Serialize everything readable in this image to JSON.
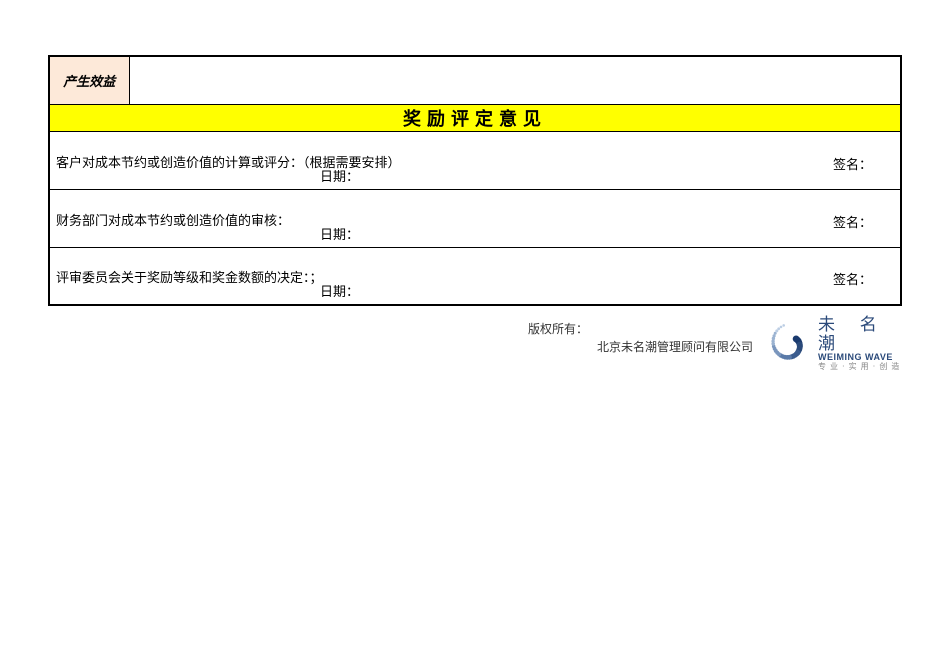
{
  "row_benefit": {
    "label": "产生效益",
    "body": ""
  },
  "header": {
    "title": "奖励评定意见"
  },
  "sections": [
    {
      "top": "客户对成本节约或创造价值的计算或评分：（根据需要安排）",
      "date_label": "日期：",
      "sign_label": "签名："
    },
    {
      "top": "财务部门对成本节约或创造价值的审核：",
      "date_label": "日期：",
      "sign_label": "签名："
    },
    {
      "top": "评审委员会关于奖励等级和奖金数额的决定：；",
      "date_label": "日期：",
      "sign_label": "签名："
    }
  ],
  "footer": {
    "copyright": "版权所有：",
    "company": "北京未名潮管理顾问有限公司",
    "logo_cn": "未 名 潮",
    "logo_en": "WEIMING WAVE",
    "logo_small": "专 业 · 实 用 · 创 造"
  },
  "style": {
    "benefit_bg": "#fde9d9",
    "benefit_fg": "#c00000",
    "header_bg": "#ffff00",
    "logo_color": "#2b4a7a",
    "dot_colors": [
      "#1a3a6e",
      "#2b4a7a",
      "#3c5d8f",
      "#5a7aa8",
      "#7a96bd",
      "#9bb3d1",
      "#bccee4"
    ]
  }
}
